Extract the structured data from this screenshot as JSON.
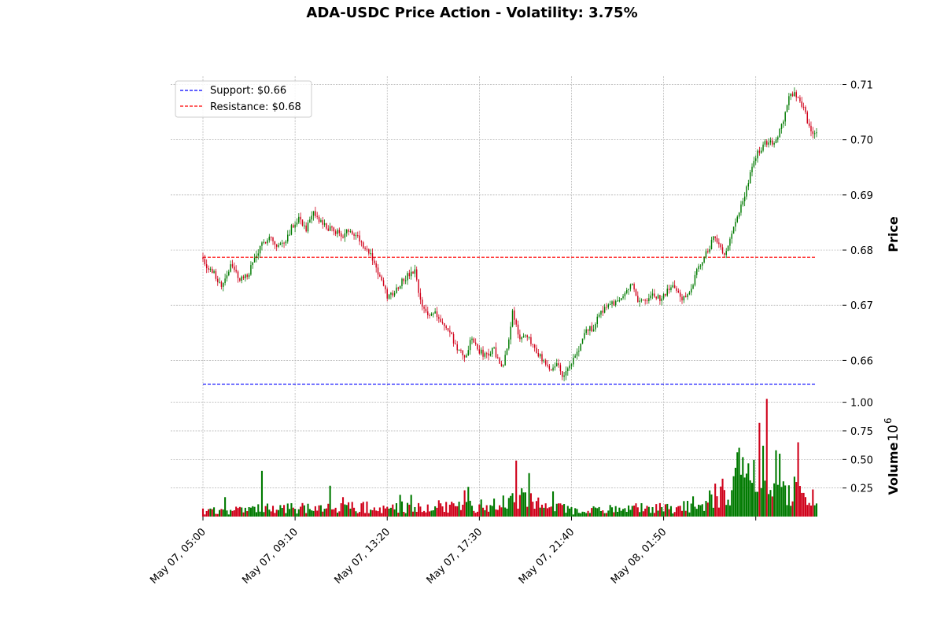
{
  "chart_data": {
    "type": "candlestick",
    "title": "ADA-USDC Price Action - Volatility: 3.75%",
    "price_panel": {
      "ylabel": "Price",
      "ylim": [
        0.6545,
        0.7115
      ],
      "yticks": [
        0.66,
        0.67,
        0.68,
        0.69,
        0.7,
        0.71
      ],
      "ytick_labels": [
        "0.66",
        "0.67",
        "0.68",
        "0.69",
        "0.70",
        "0.71"
      ],
      "grid": true
    },
    "volume_panel": {
      "ylabel": "Volume",
      "scale_label": "10",
      "scale_exponent": "6",
      "ylim": [
        0,
        1.08
      ],
      "yticks": [
        0.25,
        0.5,
        0.75,
        1.0
      ],
      "ytick_labels": [
        "0.25",
        "0.50",
        "0.75",
        "1.00"
      ],
      "grid": true
    },
    "x_axis": {
      "tick_positions": [
        0,
        50,
        100,
        150,
        200,
        250,
        300
      ],
      "tick_labels": [
        "May 07, 05:00",
        "May 07, 09:10",
        "May 07, 13:20",
        "May 07, 17:30",
        "May 07, 21:40",
        "May 08, 01:50",
        ""
      ]
    },
    "lines": [
      {
        "name": "Support: $0.66",
        "value": 0.6557,
        "color": "#0000ff",
        "style": "dashed"
      },
      {
        "name": "Resistance: $0.68",
        "value": 0.6787,
        "color": "#ff0000",
        "style": "dashed"
      }
    ],
    "legend": {
      "position": "top-left",
      "entries": [
        "Support: $0.66",
        "Resistance: $0.68"
      ]
    },
    "colors": {
      "up": "#007a00",
      "down": "#d0021b",
      "grid": "#b0b0b0"
    },
    "price_anchors": [
      [
        0,
        0.6787
      ],
      [
        3,
        0.6765
      ],
      [
        6,
        0.6758
      ],
      [
        10,
        0.6735
      ],
      [
        15,
        0.6772
      ],
      [
        20,
        0.6748
      ],
      [
        24,
        0.6752
      ],
      [
        28,
        0.6785
      ],
      [
        32,
        0.6808
      ],
      [
        36,
        0.6828
      ],
      [
        40,
        0.6805
      ],
      [
        44,
        0.6815
      ],
      [
        48,
        0.684
      ],
      [
        52,
        0.686
      ],
      [
        56,
        0.6838
      ],
      [
        60,
        0.6865
      ],
      [
        64,
        0.685
      ],
      [
        68,
        0.6838
      ],
      [
        72,
        0.6835
      ],
      [
        76,
        0.6825
      ],
      [
        80,
        0.6838
      ],
      [
        84,
        0.6825
      ],
      [
        88,
        0.6805
      ],
      [
        92,
        0.6785
      ],
      [
        96,
        0.675
      ],
      [
        100,
        0.6715
      ],
      [
        104,
        0.6725
      ],
      [
        108,
        0.6745
      ],
      [
        112,
        0.6755
      ],
      [
        115,
        0.676
      ],
      [
        118,
        0.6705
      ],
      [
        122,
        0.668
      ],
      [
        126,
        0.669
      ],
      [
        130,
        0.6665
      ],
      [
        134,
        0.665
      ],
      [
        138,
        0.662
      ],
      [
        142,
        0.6605
      ],
      [
        146,
        0.664
      ],
      [
        150,
        0.6615
      ],
      [
        154,
        0.661
      ],
      [
        158,
        0.662
      ],
      [
        162,
        0.6585
      ],
      [
        165,
        0.662
      ],
      [
        168,
        0.669
      ],
      [
        172,
        0.664
      ],
      [
        176,
        0.664
      ],
      [
        180,
        0.6625
      ],
      [
        184,
        0.66
      ],
      [
        188,
        0.658
      ],
      [
        192,
        0.6595
      ],
      [
        196,
        0.657
      ],
      [
        200,
        0.6595
      ],
      [
        204,
        0.662
      ],
      [
        208,
        0.6655
      ],
      [
        212,
        0.666
      ],
      [
        216,
        0.669
      ],
      [
        220,
        0.67
      ],
      [
        224,
        0.6705
      ],
      [
        228,
        0.672
      ],
      [
        232,
        0.674
      ],
      [
        236,
        0.6712
      ],
      [
        240,
        0.6705
      ],
      [
        244,
        0.672
      ],
      [
        248,
        0.671
      ],
      [
        252,
        0.6725
      ],
      [
        256,
        0.6735
      ],
      [
        260,
        0.671
      ],
      [
        264,
        0.6725
      ],
      [
        268,
        0.676
      ],
      [
        272,
        0.679
      ],
      [
        274,
        0.68
      ],
      [
        277,
        0.682
      ],
      [
        280,
        0.681
      ],
      [
        283,
        0.6795
      ],
      [
        286,
        0.682
      ],
      [
        289,
        0.685
      ],
      [
        292,
        0.688
      ],
      [
        295,
        0.691
      ],
      [
        298,
        0.695
      ],
      [
        301,
        0.6975
      ],
      [
        304,
        0.699
      ],
      [
        307,
        0.7
      ],
      [
        310,
        0.6995
      ],
      [
        313,
        0.7015
      ],
      [
        316,
        0.705
      ],
      [
        319,
        0.7085
      ],
      [
        322,
        0.708
      ],
      [
        325,
        0.7065
      ],
      [
        328,
        0.7035
      ],
      [
        331,
        0.7005
      ],
      [
        333,
        0.701
      ]
    ],
    "volume_anchors": [
      [
        0,
        0.05
      ],
      [
        40,
        0.08
      ],
      [
        90,
        0.09
      ],
      [
        150,
        0.1
      ],
      [
        165,
        0.15
      ],
      [
        170,
        0.22
      ],
      [
        180,
        0.14
      ],
      [
        200,
        0.06
      ],
      [
        260,
        0.09
      ],
      [
        275,
        0.17
      ],
      [
        285,
        0.25
      ],
      [
        290,
        0.4
      ],
      [
        295,
        0.45
      ],
      [
        300,
        0.35
      ],
      [
        310,
        0.25
      ],
      [
        320,
        0.28
      ],
      [
        333,
        0.15
      ]
    ],
    "volume_spikes": [
      [
        12,
        0.17
      ],
      [
        32,
        0.4
      ],
      [
        69,
        0.27
      ],
      [
        76,
        0.17
      ],
      [
        107,
        0.19
      ],
      [
        113,
        0.19
      ],
      [
        142,
        0.23
      ],
      [
        144,
        0.26
      ],
      [
        170,
        0.49
      ],
      [
        177,
        0.38
      ],
      [
        190,
        0.22
      ],
      [
        293,
        0.52
      ],
      [
        302,
        0.82
      ],
      [
        304,
        0.62
      ],
      [
        306,
        1.03
      ],
      [
        311,
        0.58
      ],
      [
        313,
        0.55
      ],
      [
        323,
        0.65
      ]
    ],
    "n_candles": 334,
    "seed": 7
  }
}
